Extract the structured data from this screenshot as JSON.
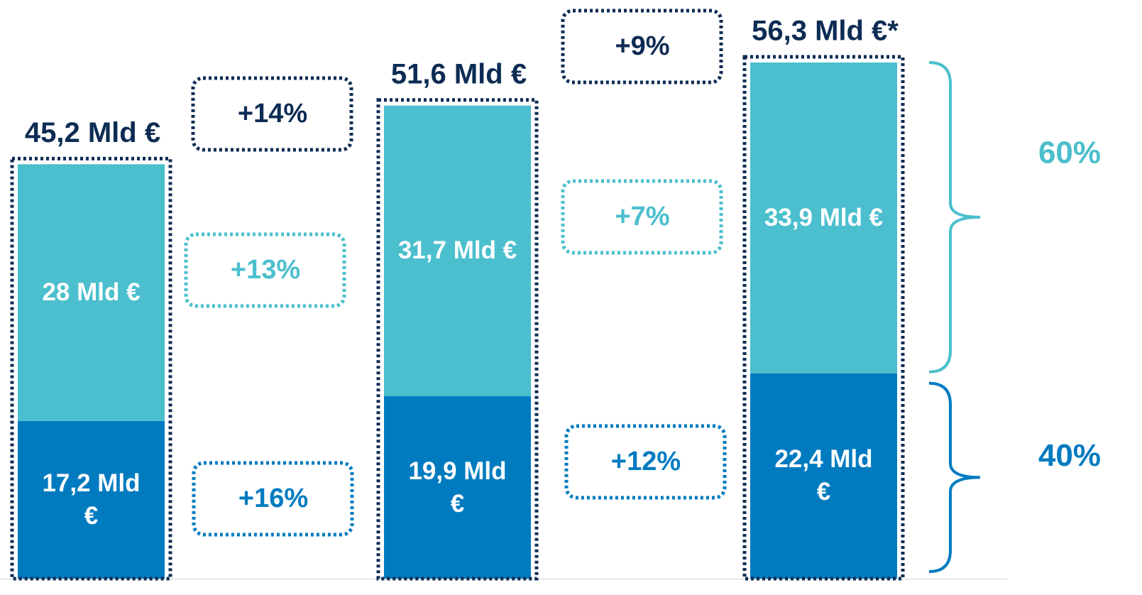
{
  "chart_data": {
    "type": "bar",
    "stacked": true,
    "categories": [
      null,
      null,
      null
    ],
    "series": [
      {
        "color": "#007bc0",
        "values": [
          17.2,
          19.9,
          22.4
        ],
        "value_labels": [
          "17,2 Mld €",
          "19,9 Mld €",
          "22,4 Mld €"
        ]
      },
      {
        "color": "#4bbfcd",
        "values": [
          28,
          31.7,
          33.9
        ],
        "value_labels": [
          "28 Mld €",
          "31,7 Mld €",
          "33,9 Mld €"
        ]
      }
    ],
    "totals": [
      45.2,
      51.6,
      56.3
    ],
    "total_labels": [
      "45,2 Mld €",
      "51,6 Mld €",
      "56,3 Mld €*"
    ],
    "total_color": "#0d2c54",
    "growth": [
      {
        "total": "+14%",
        "top": "+13%",
        "bottom": "+16%"
      },
      {
        "total": "+9%",
        "top": "+7%",
        "bottom": "+12%"
      }
    ],
    "shares": [
      {
        "value": 60,
        "label": "60%"
      },
      {
        "value": 40,
        "label": "40%"
      }
    ],
    "ylim": [
      0,
      56.3
    ]
  }
}
